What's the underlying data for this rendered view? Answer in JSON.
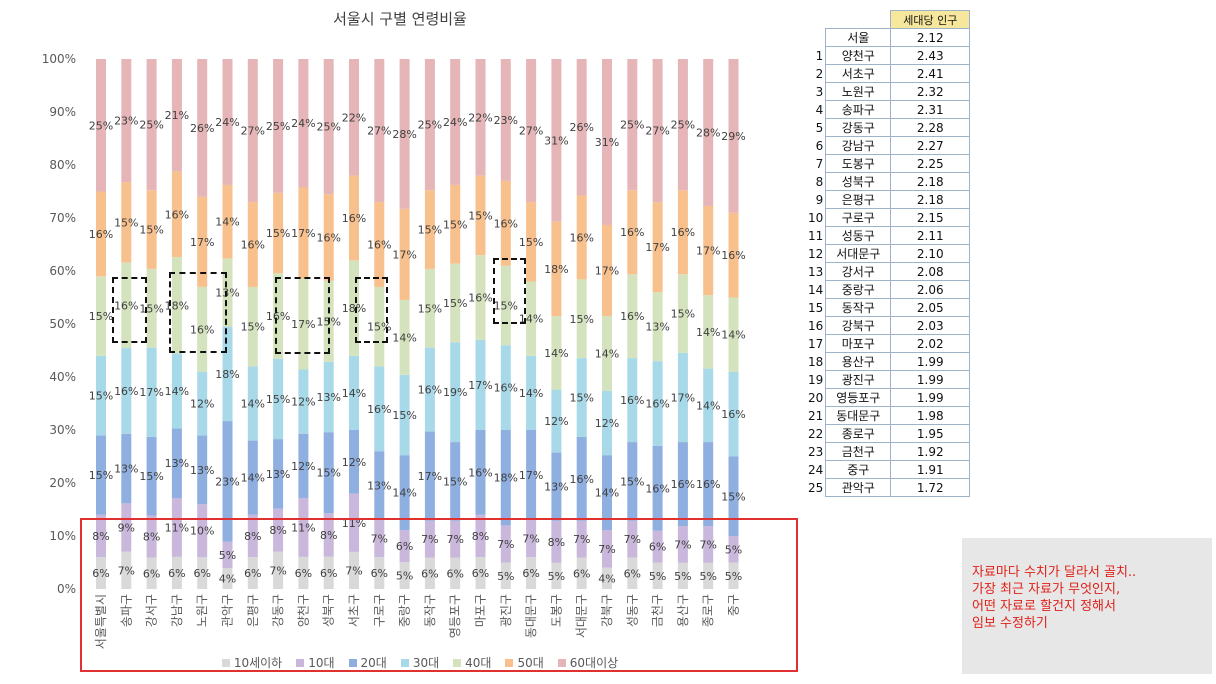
{
  "chart_data": {
    "type": "bar",
    "stacked": true,
    "percent": true,
    "title": "서울시 구별 연령비율",
    "categories": [
      "서울특별시",
      "송파구",
      "강서구",
      "강남구",
      "노원구",
      "관악구",
      "은평구",
      "강동구",
      "양천구",
      "성북구",
      "서초구",
      "구로구",
      "중랑구",
      "동작구",
      "영등포구",
      "마포구",
      "광진구",
      "동대문구",
      "도봉구",
      "서대문구",
      "강북구",
      "성동구",
      "금천구",
      "용산구",
      "종로구",
      "중구"
    ],
    "yticks": [
      "0%",
      "10%",
      "20%",
      "30%",
      "40%",
      "50%",
      "60%",
      "70%",
      "80%",
      "90%",
      "100%"
    ],
    "series": [
      {
        "name": "10세이하",
        "color": "#d9d9d9",
        "values": [
          6,
          7,
          6,
          6,
          6,
          4,
          6,
          7,
          6,
          6,
          7,
          6,
          5,
          6,
          6,
          6,
          5,
          6,
          5,
          6,
          4,
          6,
          5,
          5,
          5,
          5
        ]
      },
      {
        "name": "10대",
        "color": "#c9b8dc",
        "values": [
          8,
          9,
          8,
          11,
          10,
          5,
          8,
          8,
          11,
          8,
          11,
          7,
          6,
          7,
          7,
          8,
          7,
          7,
          8,
          7,
          7,
          7,
          6,
          7,
          7,
          5
        ]
      },
      {
        "name": "20대",
        "color": "#8fafe0",
        "values": [
          15,
          13,
          15,
          13,
          13,
          23,
          14,
          13,
          12,
          15,
          12,
          13,
          14,
          17,
          15,
          16,
          18,
          17,
          13,
          16,
          14,
          15,
          16,
          16,
          16,
          15
        ]
      },
      {
        "name": "30대",
        "color": "#a8d9e8",
        "values": [
          15,
          16,
          17,
          14,
          12,
          18,
          14,
          15,
          12,
          13,
          14,
          16,
          15,
          16,
          19,
          17,
          16,
          14,
          12,
          15,
          12,
          16,
          16,
          17,
          14,
          16
        ]
      },
      {
        "name": "40대",
        "color": "#d4e3bd",
        "values": [
          15,
          16,
          15,
          18,
          16,
          13,
          15,
          16,
          17,
          15,
          18,
          15,
          14,
          15,
          15,
          16,
          15,
          14,
          14,
          15,
          14,
          16,
          13,
          15,
          14,
          14
        ]
      },
      {
        "name": "50대",
        "color": "#f8c08c",
        "values": [
          16,
          15,
          15,
          16,
          17,
          14,
          16,
          15,
          17,
          16,
          16,
          16,
          17,
          15,
          15,
          15,
          16,
          15,
          18,
          16,
          17,
          16,
          17,
          16,
          17,
          16
        ]
      },
      {
        "name": "60대이상",
        "color": "#e6b5b8",
        "values": [
          25,
          23,
          25,
          21,
          26,
          24,
          27,
          25,
          24,
          25,
          22,
          27,
          28,
          25,
          24,
          22,
          23,
          27,
          31,
          26,
          31,
          25,
          27,
          25,
          28,
          29
        ]
      }
    ]
  },
  "table": {
    "header": "세대당 인구",
    "total": {
      "name": "서울",
      "value": "2.12"
    },
    "rows": [
      {
        "rank": "1",
        "name": "양천구",
        "value": "2.43"
      },
      {
        "rank": "2",
        "name": "서초구",
        "value": "2.41"
      },
      {
        "rank": "3",
        "name": "노원구",
        "value": "2.32"
      },
      {
        "rank": "4",
        "name": "송파구",
        "value": "2.31"
      },
      {
        "rank": "5",
        "name": "강동구",
        "value": "2.28"
      },
      {
        "rank": "6",
        "name": "강남구",
        "value": "2.27"
      },
      {
        "rank": "7",
        "name": "도봉구",
        "value": "2.25"
      },
      {
        "rank": "8",
        "name": "성북구",
        "value": "2.18"
      },
      {
        "rank": "9",
        "name": "은평구",
        "value": "2.18"
      },
      {
        "rank": "10",
        "name": "구로구",
        "value": "2.15"
      },
      {
        "rank": "11",
        "name": "성동구",
        "value": "2.11"
      },
      {
        "rank": "12",
        "name": "서대문구",
        "value": "2.10"
      },
      {
        "rank": "13",
        "name": "강서구",
        "value": "2.08"
      },
      {
        "rank": "14",
        "name": "중랑구",
        "value": "2.06"
      },
      {
        "rank": "15",
        "name": "동작구",
        "value": "2.05"
      },
      {
        "rank": "16",
        "name": "강북구",
        "value": "2.03"
      },
      {
        "rank": "17",
        "name": "마포구",
        "value": "2.02"
      },
      {
        "rank": "18",
        "name": "용산구",
        "value": "1.99"
      },
      {
        "rank": "19",
        "name": "광진구",
        "value": "1.99"
      },
      {
        "rank": "20",
        "name": "영등포구",
        "value": "1.99"
      },
      {
        "rank": "21",
        "name": "동대문구",
        "value": "1.98"
      },
      {
        "rank": "22",
        "name": "종로구",
        "value": "1.95"
      },
      {
        "rank": "23",
        "name": "금천구",
        "value": "1.92"
      },
      {
        "rank": "24",
        "name": "중구",
        "value": "1.91"
      },
      {
        "rank": "25",
        "name": "관악구",
        "value": "1.72"
      }
    ]
  },
  "note": "자료마다 수치가 달라서 골치..\n가장 최근 자료가 무엇인지,\n어떤 자료로 할건지 정해서\n임보 수정하기",
  "colors": {
    "highlight_box": "#e03030",
    "note_text": "#e0201a",
    "table_header_bg": "#f6e79c"
  }
}
